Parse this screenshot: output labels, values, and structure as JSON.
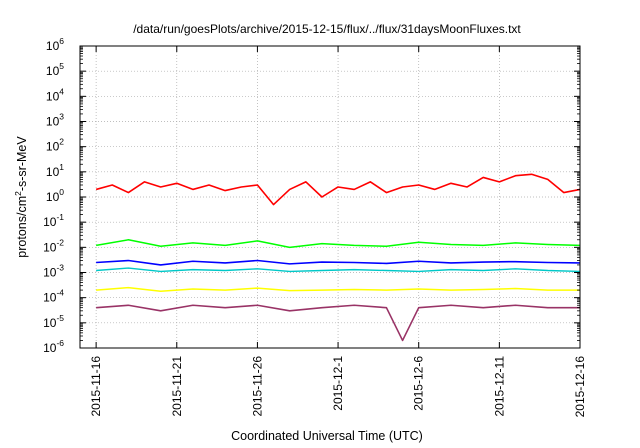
{
  "chart_data": {
    "type": "line",
    "title": "/data/run/goesPlots/archive/2015-12-15/flux/../flux/31daysMoonFluxes.txt",
    "xlabel": "Coordinated Universal Time (UTC)",
    "ylabel": {
      "base": "protons/cm",
      "sup": "2",
      "rest": "-s-sr-MeV"
    },
    "y_scale": "log",
    "ylim": [
      1e-06,
      1000000.0
    ],
    "xlim": [
      "2015-11-15",
      "2015-12-16"
    ],
    "grid": true,
    "legend": "none",
    "y_ticks": [
      {
        "base": "10",
        "exp": "-6",
        "value": 1e-06
      },
      {
        "base": "10",
        "exp": "-5",
        "value": 1e-05
      },
      {
        "base": "10",
        "exp": "-4",
        "value": 0.0001
      },
      {
        "base": "10",
        "exp": "-3",
        "value": 0.001
      },
      {
        "base": "10",
        "exp": "-2",
        "value": 0.01
      },
      {
        "base": "10",
        "exp": "-1",
        "value": 0.1
      },
      {
        "base": "10",
        "exp": "0",
        "value": 1
      },
      {
        "base": "10",
        "exp": "1",
        "value": 10
      },
      {
        "base": "10",
        "exp": "2",
        "value": 100
      },
      {
        "base": "10",
        "exp": "3",
        "value": 1000
      },
      {
        "base": "10",
        "exp": "4",
        "value": 10000
      },
      {
        "base": "10",
        "exp": "5",
        "value": 100000
      },
      {
        "base": "10",
        "exp": "6",
        "value": 1000000
      }
    ],
    "x_ticks": [
      {
        "label": "2015-11-16",
        "date": "2015-11-16"
      },
      {
        "label": "2015-11-21",
        "date": "2015-11-21"
      },
      {
        "label": "2015-11-26",
        "date": "2015-11-26"
      },
      {
        "label": "2015-12-1",
        "date": "2015-12-01"
      },
      {
        "label": "2015-12-6",
        "date": "2015-12-06"
      },
      {
        "label": "2015-12-11",
        "date": "2015-12-11"
      },
      {
        "label": "2015-12-16",
        "date": "2015-12-16"
      }
    ],
    "series": [
      {
        "color": "#ff0000",
        "stroke_width": 1.6,
        "x": [
          "2015-11-16",
          "2015-11-17",
          "2015-11-18",
          "2015-11-19",
          "2015-11-20",
          "2015-11-21",
          "2015-11-22",
          "2015-11-23",
          "2015-11-24",
          "2015-11-25",
          "2015-11-26",
          "2015-11-27",
          "2015-11-28",
          "2015-11-29",
          "2015-11-30",
          "2015-12-01",
          "2015-12-02",
          "2015-12-03",
          "2015-12-04",
          "2015-12-05",
          "2015-12-06",
          "2015-12-07",
          "2015-12-08",
          "2015-12-09",
          "2015-12-10",
          "2015-12-11",
          "2015-12-12",
          "2015-12-13",
          "2015-12-14",
          "2015-12-15",
          "2015-12-16"
        ],
        "y": [
          2.0,
          3.0,
          1.5,
          4.0,
          2.5,
          3.5,
          2.0,
          3.0,
          1.8,
          2.5,
          3.0,
          0.5,
          2.0,
          4.0,
          1.0,
          2.5,
          2.0,
          4.0,
          1.5,
          2.5,
          3.0,
          2.0,
          3.5,
          2.5,
          6.0,
          4.0,
          7.0,
          8.0,
          5.0,
          1.5,
          2.0
        ]
      },
      {
        "color": "#00ff00",
        "stroke_width": 1.5,
        "x": [
          "2015-11-16",
          "2015-11-18",
          "2015-11-20",
          "2015-11-22",
          "2015-11-24",
          "2015-11-26",
          "2015-11-28",
          "2015-11-30",
          "2015-12-02",
          "2015-12-04",
          "2015-12-06",
          "2015-12-08",
          "2015-12-10",
          "2015-12-12",
          "2015-12-14",
          "2015-12-16"
        ],
        "y": [
          0.012,
          0.02,
          0.011,
          0.015,
          0.012,
          0.018,
          0.01,
          0.014,
          0.012,
          0.011,
          0.016,
          0.013,
          0.012,
          0.015,
          0.013,
          0.012
        ]
      },
      {
        "color": "#00c8c8",
        "stroke_width": 1.4,
        "x": [
          "2015-11-16",
          "2015-11-18",
          "2015-11-20",
          "2015-11-22",
          "2015-11-24",
          "2015-11-26",
          "2015-11-28",
          "2015-11-30",
          "2015-12-02",
          "2015-12-04",
          "2015-12-06",
          "2015-12-08",
          "2015-12-10",
          "2015-12-12",
          "2015-12-14",
          "2015-12-16"
        ],
        "y": [
          0.0012,
          0.0015,
          0.0011,
          0.0013,
          0.0012,
          0.0014,
          0.0011,
          0.0012,
          0.0013,
          0.0012,
          0.0011,
          0.0013,
          0.0012,
          0.0014,
          0.0012,
          0.0011
        ]
      },
      {
        "color": "#0000ff",
        "stroke_width": 1.6,
        "x": [
          "2015-11-16",
          "2015-11-18",
          "2015-11-20",
          "2015-11-22",
          "2015-11-24",
          "2015-11-26",
          "2015-11-28",
          "2015-11-30",
          "2015-12-02",
          "2015-12-04",
          "2015-12-06",
          "2015-12-08",
          "2015-12-10",
          "2015-12-12",
          "2015-12-14",
          "2015-12-16"
        ],
        "y": [
          0.0025,
          0.003,
          0.002,
          0.0028,
          0.0024,
          0.003,
          0.0022,
          0.0026,
          0.0025,
          0.0023,
          0.0028,
          0.0024,
          0.0026,
          0.0027,
          0.0025,
          0.0024
        ]
      },
      {
        "color": "#ffff00",
        "stroke_width": 1.5,
        "x": [
          "2015-11-16",
          "2015-11-18",
          "2015-11-20",
          "2015-11-22",
          "2015-11-24",
          "2015-11-26",
          "2015-11-28",
          "2015-11-30",
          "2015-12-02",
          "2015-12-04",
          "2015-12-06",
          "2015-12-08",
          "2015-12-10",
          "2015-12-12",
          "2015-12-14",
          "2015-12-16"
        ],
        "y": [
          0.0002,
          0.00025,
          0.00018,
          0.00022,
          0.0002,
          0.00024,
          0.00019,
          0.0002,
          0.00021,
          0.0002,
          0.00022,
          0.0002,
          0.00021,
          0.00023,
          0.0002,
          0.0002
        ]
      },
      {
        "color": "#993366",
        "stroke_width": 1.6,
        "x": [
          "2015-11-16",
          "2015-11-18",
          "2015-11-20",
          "2015-11-22",
          "2015-11-24",
          "2015-11-26",
          "2015-11-28",
          "2015-11-30",
          "2015-12-02",
          "2015-12-04",
          "2015-12-05",
          "2015-12-06",
          "2015-12-08",
          "2015-12-10",
          "2015-12-12",
          "2015-12-14",
          "2015-12-16"
        ],
        "y": [
          4e-05,
          5e-05,
          3e-05,
          5e-05,
          4e-05,
          5e-05,
          3e-05,
          4e-05,
          5e-05,
          4e-05,
          2e-06,
          4e-05,
          5e-05,
          4e-05,
          5e-05,
          4e-05,
          4e-05
        ]
      }
    ]
  }
}
